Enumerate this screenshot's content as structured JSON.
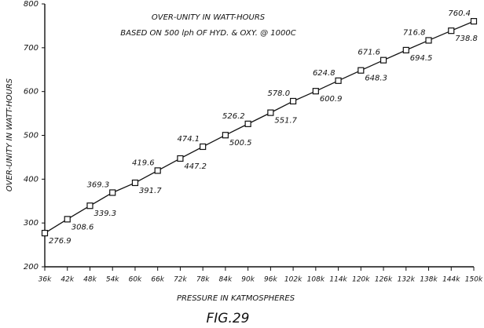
{
  "chart_data": {
    "type": "line",
    "title": "OVER-UNITY IN WATT-HOURS",
    "subtitle": "BASED ON 500 lph OF HYD. & OXY. @ 1000C",
    "x_label": "PRESSURE IN KATMOSPHERES",
    "y_label": "OVER-UNITY IN WATT-HOURS",
    "caption": "FIG.29",
    "x": [
      36000,
      42000,
      48000,
      54000,
      60000,
      66000,
      72000,
      78000,
      84000,
      90000,
      96000,
      102000,
      108000,
      114000,
      120000,
      126000,
      132000,
      138000,
      144000,
      150000
    ],
    "values": [
      276.9,
      308.6,
      339.3,
      369.3,
      391.7,
      419.6,
      447.2,
      474.1,
      500.5,
      526.2,
      551.7,
      578.0,
      600.9,
      624.8,
      648.3,
      671.6,
      694.5,
      716.8,
      738.8,
      760.4
    ],
    "value_labels": [
      "276.9",
      "308.6",
      "339.3",
      "369.3",
      "391.7",
      "419.6",
      "447.2",
      "474.1",
      "500.5",
      "526.2",
      "551.7",
      "578.0",
      "600.9",
      "624.8",
      "648.3",
      "671.6",
      "694.5",
      "716.8",
      "738.8",
      "760.4"
    ],
    "color": "#111111",
    "xlim": [
      36000,
      150000
    ],
    "xticks": [
      {
        "value": 36000,
        "label": "36k"
      },
      {
        "value": 42000,
        "label": "42k"
      },
      {
        "value": 48000,
        "label": "48k"
      },
      {
        "value": 54000,
        "label": "54k"
      },
      {
        "value": 60000,
        "label": "60k"
      },
      {
        "value": 66000,
        "label": "66k"
      },
      {
        "value": 72000,
        "label": "72k"
      },
      {
        "value": 78000,
        "label": "78k"
      },
      {
        "value": 84000,
        "label": "84k"
      },
      {
        "value": 90000,
        "label": "90k"
      },
      {
        "value": 96000,
        "label": "96k"
      },
      {
        "value": 102000,
        "label": "102k"
      },
      {
        "value": 108000,
        "label": "108k"
      },
      {
        "value": 114000,
        "label": "114k"
      },
      {
        "value": 120000,
        "label": "120k"
      },
      {
        "value": 126000,
        "label": "126k"
      },
      {
        "value": 132000,
        "label": "132k"
      },
      {
        "value": 138000,
        "label": "138k"
      },
      {
        "value": 144000,
        "label": "144k"
      },
      {
        "value": 150000,
        "label": "150k"
      }
    ],
    "ylim": [
      200,
      800
    ],
    "yticks": [
      200,
      300,
      400,
      500,
      600,
      700,
      800
    ],
    "grid": false
  }
}
